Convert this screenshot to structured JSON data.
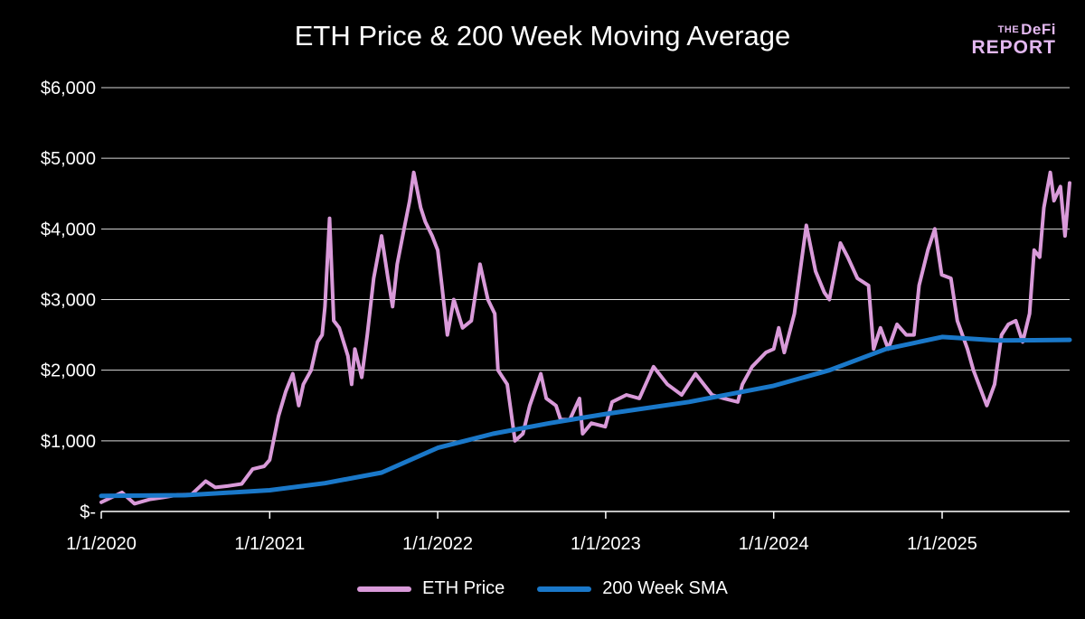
{
  "brand": {
    "line1_small": "THE",
    "line1": "DeFi",
    "line2": "REPORT"
  },
  "colors": {
    "eth": "#d99ad9",
    "sma": "#1a78c9",
    "grid": "#d9d9d9",
    "axis": "#ffffff",
    "background": "#000000"
  },
  "chart_data": {
    "type": "line",
    "title": "ETH Price & 200 Week Moving Average",
    "xlabel": "",
    "ylabel": "",
    "x_ticks": [
      "1/1/2020",
      "1/1/2021",
      "1/1/2022",
      "1/1/2023",
      "1/1/2024",
      "1/1/2025"
    ],
    "x_range": [
      "2020-01-01",
      "2025-10-05"
    ],
    "ylim": [
      0,
      6000
    ],
    "y_ticks": [
      0,
      1000,
      2000,
      3000,
      4000,
      5000,
      6000
    ],
    "y_tick_labels": [
      "$-",
      "$1,000",
      "$2,000",
      "$3,000",
      "$4,000",
      "$5,000",
      "$6,000"
    ],
    "grid": "horizontal",
    "legend": "bottom",
    "series": [
      {
        "name": "ETH Price",
        "color": "#d99ad9",
        "points": [
          [
            "2020-01-01",
            130
          ],
          [
            "2020-02-15",
            270
          ],
          [
            "2020-03-13",
            110
          ],
          [
            "2020-04-15",
            170
          ],
          [
            "2020-05-15",
            200
          ],
          [
            "2020-06-15",
            235
          ],
          [
            "2020-07-15",
            240
          ],
          [
            "2020-08-15",
            430
          ],
          [
            "2020-09-05",
            340
          ],
          [
            "2020-10-01",
            360
          ],
          [
            "2020-11-01",
            390
          ],
          [
            "2020-11-25",
            600
          ],
          [
            "2020-12-20",
            640
          ],
          [
            "2021-01-01",
            730
          ],
          [
            "2021-01-20",
            1350
          ],
          [
            "2021-02-05",
            1700
          ],
          [
            "2021-02-20",
            1950
          ],
          [
            "2021-03-05",
            1500
          ],
          [
            "2021-03-15",
            1800
          ],
          [
            "2021-04-01",
            2000
          ],
          [
            "2021-04-15",
            2400
          ],
          [
            "2021-04-25",
            2500
          ],
          [
            "2021-05-01",
            2900
          ],
          [
            "2021-05-11",
            4150
          ],
          [
            "2021-05-20",
            2700
          ],
          [
            "2021-06-01",
            2600
          ],
          [
            "2021-06-20",
            2200
          ],
          [
            "2021-06-28",
            1800
          ],
          [
            "2021-07-05",
            2300
          ],
          [
            "2021-07-20",
            1900
          ],
          [
            "2021-08-01",
            2500
          ],
          [
            "2021-08-15",
            3300
          ],
          [
            "2021-09-01",
            3900
          ],
          [
            "2021-09-15",
            3300
          ],
          [
            "2021-09-25",
            2900
          ],
          [
            "2021-10-05",
            3500
          ],
          [
            "2021-10-20",
            4000
          ],
          [
            "2021-11-01",
            4400
          ],
          [
            "2021-11-10",
            4800
          ],
          [
            "2021-11-25",
            4300
          ],
          [
            "2021-12-05",
            4100
          ],
          [
            "2021-12-20",
            3900
          ],
          [
            "2022-01-01",
            3700
          ],
          [
            "2022-01-10",
            3200
          ],
          [
            "2022-01-22",
            2500
          ],
          [
            "2022-02-05",
            3000
          ],
          [
            "2022-02-24",
            2600
          ],
          [
            "2022-03-15",
            2700
          ],
          [
            "2022-04-03",
            3500
          ],
          [
            "2022-04-20",
            3000
          ],
          [
            "2022-05-05",
            2800
          ],
          [
            "2022-05-12",
            2000
          ],
          [
            "2022-06-01",
            1800
          ],
          [
            "2022-06-18",
            1000
          ],
          [
            "2022-07-05",
            1100
          ],
          [
            "2022-07-20",
            1500
          ],
          [
            "2022-08-13",
            1950
          ],
          [
            "2022-08-25",
            1600
          ],
          [
            "2022-09-15",
            1500
          ],
          [
            "2022-09-25",
            1300
          ],
          [
            "2022-10-15",
            1300
          ],
          [
            "2022-11-05",
            1600
          ],
          [
            "2022-11-12",
            1100
          ],
          [
            "2022-12-01",
            1250
          ],
          [
            "2022-12-31",
            1200
          ],
          [
            "2023-01-15",
            1550
          ],
          [
            "2023-02-15",
            1650
          ],
          [
            "2023-03-15",
            1600
          ],
          [
            "2023-04-15",
            2050
          ],
          [
            "2023-05-15",
            1800
          ],
          [
            "2023-06-15",
            1650
          ],
          [
            "2023-07-15",
            1950
          ],
          [
            "2023-08-20",
            1650
          ],
          [
            "2023-09-15",
            1600
          ],
          [
            "2023-10-15",
            1550
          ],
          [
            "2023-10-25",
            1800
          ],
          [
            "2023-11-15",
            2050
          ],
          [
            "2023-12-15",
            2250
          ],
          [
            "2024-01-01",
            2300
          ],
          [
            "2024-01-12",
            2600
          ],
          [
            "2024-01-24",
            2250
          ],
          [
            "2024-02-15",
            2800
          ],
          [
            "2024-03-12",
            4050
          ],
          [
            "2024-04-01",
            3400
          ],
          [
            "2024-04-20",
            3100
          ],
          [
            "2024-05-01",
            3000
          ],
          [
            "2024-05-25",
            3800
          ],
          [
            "2024-06-10",
            3600
          ],
          [
            "2024-07-01",
            3300
          ],
          [
            "2024-07-25",
            3200
          ],
          [
            "2024-08-05",
            2300
          ],
          [
            "2024-08-20",
            2600
          ],
          [
            "2024-09-06",
            2300
          ],
          [
            "2024-09-25",
            2650
          ],
          [
            "2024-10-15",
            2500
          ],
          [
            "2024-11-01",
            2500
          ],
          [
            "2024-11-12",
            3200
          ],
          [
            "2024-12-01",
            3700
          ],
          [
            "2024-12-16",
            4000
          ],
          [
            "2024-12-31",
            3350
          ],
          [
            "2025-01-20",
            3300
          ],
          [
            "2025-02-03",
            2700
          ],
          [
            "2025-02-25",
            2300
          ],
          [
            "2025-03-10",
            2000
          ],
          [
            "2025-04-08",
            1500
          ],
          [
            "2025-04-25",
            1800
          ],
          [
            "2025-05-10",
            2500
          ],
          [
            "2025-05-25",
            2650
          ],
          [
            "2025-06-10",
            2700
          ],
          [
            "2025-06-25",
            2400
          ],
          [
            "2025-07-10",
            2800
          ],
          [
            "2025-07-20",
            3700
          ],
          [
            "2025-08-01",
            3600
          ],
          [
            "2025-08-10",
            4300
          ],
          [
            "2025-08-24",
            4800
          ],
          [
            "2025-09-01",
            4400
          ],
          [
            "2025-09-15",
            4600
          ],
          [
            "2025-09-25",
            3900
          ],
          [
            "2025-10-05",
            4650
          ]
        ]
      },
      {
        "name": "200 Week SMA",
        "color": "#1a78c9",
        "points": [
          [
            "2020-01-01",
            220
          ],
          [
            "2020-07-01",
            230
          ],
          [
            "2021-01-01",
            300
          ],
          [
            "2021-05-01",
            400
          ],
          [
            "2021-09-01",
            550
          ],
          [
            "2022-01-01",
            900
          ],
          [
            "2022-05-01",
            1100
          ],
          [
            "2022-09-01",
            1250
          ],
          [
            "2023-01-01",
            1380
          ],
          [
            "2023-07-01",
            1550
          ],
          [
            "2024-01-01",
            1780
          ],
          [
            "2024-05-01",
            2000
          ],
          [
            "2024-09-01",
            2300
          ],
          [
            "2025-01-01",
            2470
          ],
          [
            "2025-05-01",
            2420
          ],
          [
            "2025-10-05",
            2430
          ]
        ]
      }
    ]
  }
}
